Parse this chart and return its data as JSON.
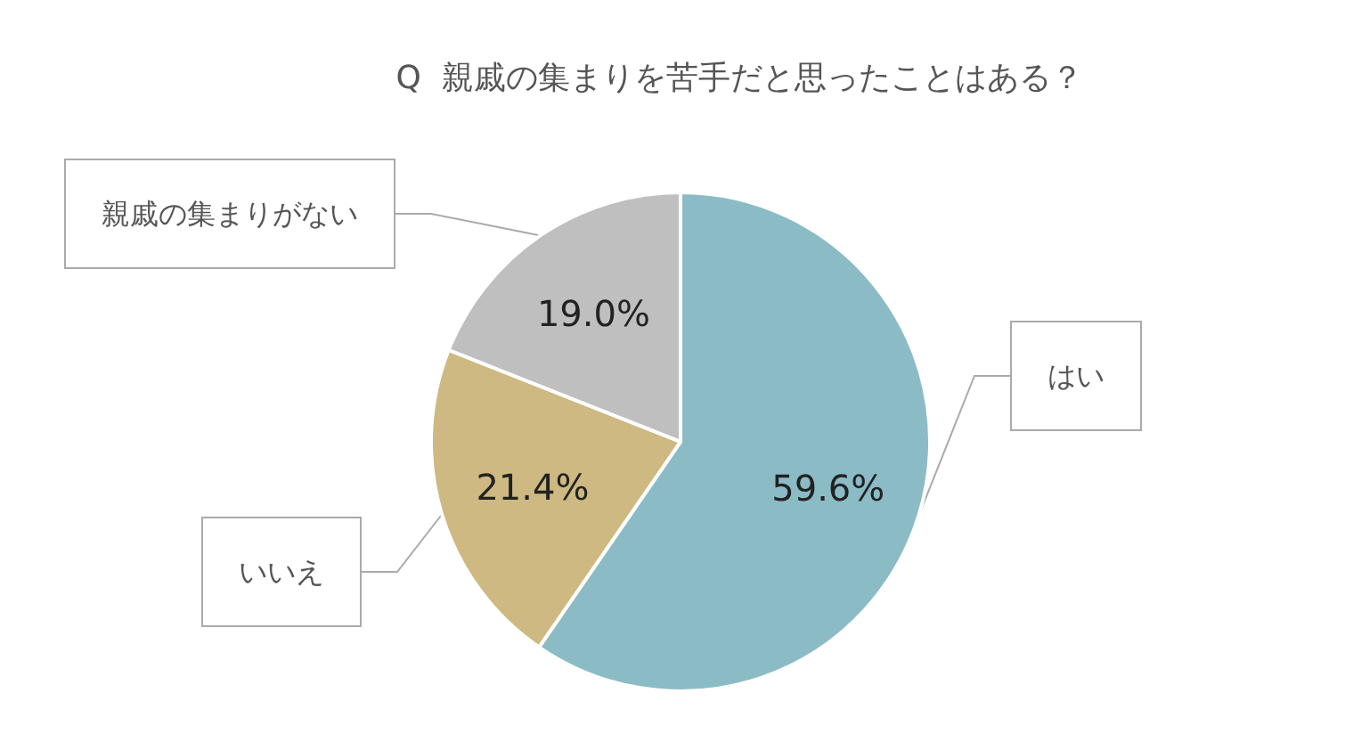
{
  "chart_data": {
    "type": "pie",
    "title": "Q  親戚の集まりを苦手だと思ったことはある？",
    "categories": [
      "はい",
      "いいえ",
      "親戚の集まりがない"
    ],
    "values": [
      59.6,
      21.4,
      19.0
    ],
    "value_labels": [
      "59.6%",
      "21.4%",
      "19.0%"
    ],
    "colors": [
      "#8bbcc6",
      "#cdb981",
      "#bfbfbf"
    ],
    "legend": false
  }
}
